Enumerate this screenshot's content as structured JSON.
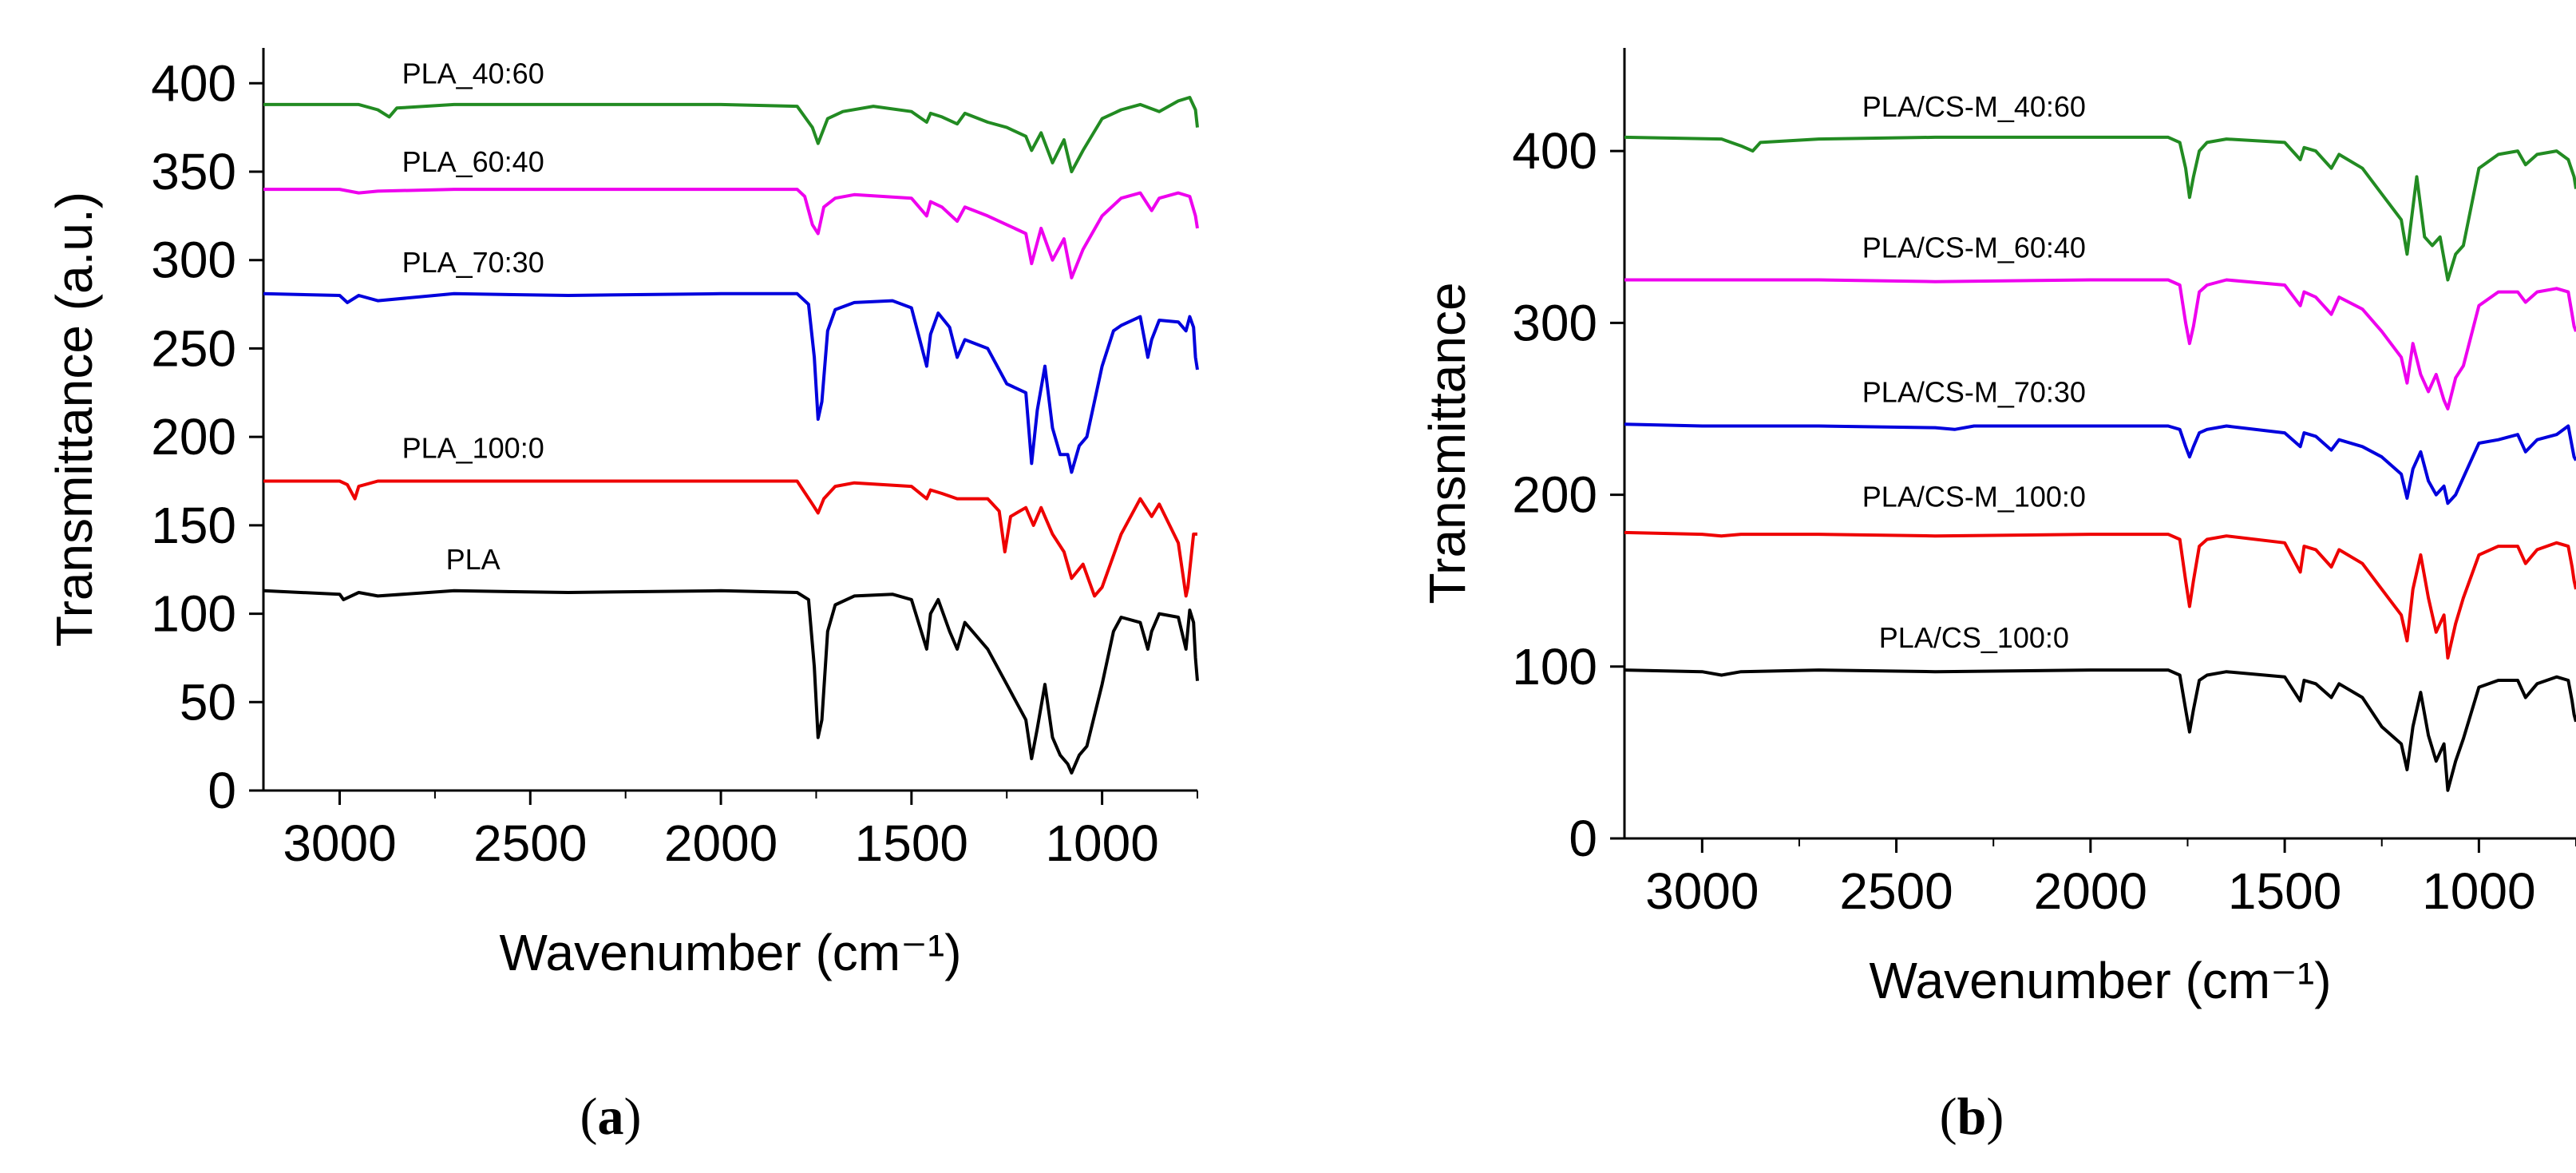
{
  "chart_data": [
    {
      "type": "line",
      "panel_label": "a",
      "xlabel": "Wavenumber (cm⁻¹)",
      "ylabel": "Transmittance (a.u.)",
      "xlim": [
        3200,
        750
      ],
      "ylim": [
        0,
        420
      ],
      "xticks": [
        3000,
        2500,
        2000,
        1500,
        1000
      ],
      "yticks": [
        0,
        50,
        100,
        150,
        200,
        250,
        300,
        350,
        400
      ],
      "grid": false,
      "series": [
        {
          "name": "PLA_40:60",
          "color": "#228b22",
          "baseline": 388,
          "label_x": 2650,
          "label_y": 400,
          "x": [
            3200,
            2950,
            2900,
            2870,
            2850,
            2700,
            2400,
            2000,
            1800,
            1760,
            1745,
            1720,
            1680,
            1600,
            1500,
            1460,
            1450,
            1420,
            1380,
            1360,
            1300,
            1250,
            1200,
            1185,
            1160,
            1130,
            1100,
            1080,
            1050,
            1000,
            950,
            900,
            850,
            800,
            770,
            755,
            750
          ],
          "values": [
            388,
            388,
            385,
            381,
            386,
            388,
            388,
            388,
            387,
            375,
            366,
            380,
            384,
            387,
            384,
            378,
            383,
            381,
            377,
            383,
            378,
            375,
            370,
            362,
            372,
            355,
            368,
            350,
            362,
            380,
            385,
            388,
            384,
            390,
            392,
            385,
            375
          ]
        },
        {
          "name": "PLA_60:40",
          "color": "#ee00ee",
          "baseline": 340,
          "label_x": 2650,
          "label_y": 350,
          "x": [
            3200,
            3000,
            2950,
            2900,
            2700,
            2400,
            2000,
            1800,
            1780,
            1760,
            1745,
            1730,
            1700,
            1650,
            1500,
            1460,
            1450,
            1420,
            1380,
            1360,
            1300,
            1250,
            1200,
            1185,
            1160,
            1130,
            1100,
            1080,
            1050,
            1000,
            950,
            900,
            870,
            850,
            800,
            770,
            755,
            750
          ],
          "values": [
            340,
            340,
            338,
            339,
            340,
            340,
            340,
            340,
            336,
            320,
            315,
            330,
            335,
            337,
            335,
            325,
            333,
            330,
            322,
            330,
            325,
            320,
            315,
            298,
            318,
            300,
            312,
            290,
            306,
            325,
            335,
            338,
            328,
            335,
            338,
            336,
            325,
            318
          ]
        },
        {
          "name": "PLA_70:30",
          "color": "#0000dd",
          "baseline": 281,
          "label_x": 2650,
          "label_y": 293,
          "x": [
            3200,
            3000,
            2980,
            2950,
            2900,
            2700,
            2400,
            2000,
            1800,
            1770,
            1755,
            1745,
            1735,
            1720,
            1700,
            1650,
            1550,
            1500,
            1460,
            1450,
            1430,
            1400,
            1380,
            1360,
            1300,
            1250,
            1200,
            1185,
            1170,
            1150,
            1130,
            1110,
            1090,
            1080,
            1060,
            1040,
            1000,
            970,
            950,
            900,
            880,
            870,
            850,
            800,
            780,
            770,
            760,
            755,
            750
          ],
          "values": [
            281,
            280,
            276,
            280,
            277,
            281,
            280,
            281,
            281,
            275,
            245,
            210,
            220,
            260,
            272,
            276,
            277,
            273,
            240,
            258,
            270,
            262,
            245,
            255,
            250,
            230,
            225,
            185,
            215,
            240,
            205,
            190,
            190,
            180,
            195,
            200,
            240,
            260,
            263,
            268,
            245,
            255,
            266,
            265,
            260,
            268,
            262,
            245,
            238
          ]
        },
        {
          "name": "PLA_100:0",
          "color": "#ee0000",
          "baseline": 175,
          "label_x": 2650,
          "label_y": 188,
          "x": [
            3200,
            3000,
            2980,
            2960,
            2950,
            2900,
            2700,
            2400,
            2000,
            1800,
            1760,
            1745,
            1730,
            1700,
            1650,
            1500,
            1460,
            1450,
            1420,
            1380,
            1300,
            1270,
            1255,
            1240,
            1200,
            1180,
            1160,
            1130,
            1100,
            1080,
            1050,
            1020,
            1000,
            950,
            900,
            870,
            850,
            800,
            780,
            775,
            760,
            750
          ],
          "values": [
            175,
            175,
            173,
            165,
            172,
            175,
            175,
            175,
            175,
            175,
            162,
            157,
            165,
            172,
            174,
            172,
            165,
            170,
            168,
            165,
            165,
            158,
            135,
            155,
            160,
            150,
            160,
            145,
            135,
            120,
            128,
            110,
            115,
            145,
            165,
            155,
            162,
            140,
            110,
            115,
            145,
            145
          ]
        },
        {
          "name": "PLA",
          "color": "#000000",
          "baseline": 113,
          "label_x": 2650,
          "label_y": 125,
          "x": [
            3200,
            3000,
            2990,
            2950,
            2900,
            2700,
            2400,
            2000,
            1800,
            1770,
            1755,
            1745,
            1735,
            1720,
            1700,
            1650,
            1550,
            1500,
            1460,
            1450,
            1430,
            1400,
            1380,
            1360,
            1300,
            1250,
            1200,
            1185,
            1170,
            1150,
            1130,
            1110,
            1090,
            1080,
            1060,
            1040,
            1000,
            970,
            950,
            900,
            880,
            870,
            850,
            800,
            780,
            770,
            760,
            755,
            750
          ],
          "values": [
            113,
            111,
            108,
            112,
            110,
            113,
            112,
            113,
            112,
            108,
            70,
            30,
            40,
            90,
            105,
            110,
            111,
            108,
            80,
            100,
            108,
            90,
            80,
            95,
            80,
            60,
            40,
            18,
            35,
            60,
            30,
            20,
            15,
            10,
            20,
            25,
            60,
            90,
            98,
            95,
            80,
            90,
            100,
            98,
            80,
            102,
            95,
            75,
            62
          ]
        }
      ]
    },
    {
      "type": "line",
      "panel_label": "b",
      "xlabel": "Wavenumber (cm⁻¹)",
      "ylabel": "Transmittance",
      "xlim": [
        3200,
        750
      ],
      "ylim": [
        0,
        460
      ],
      "xticks": [
        3000,
        2500,
        2000,
        1500,
        1000
      ],
      "yticks": [
        0,
        100,
        200,
        300,
        400
      ],
      "grid": false,
      "series": [
        {
          "name": "PLA/CS-M_40:60",
          "color": "#228b22",
          "baseline": 408,
          "label_x": 2300,
          "label_y": 420,
          "x": [
            3200,
            2950,
            2900,
            2870,
            2850,
            2700,
            2400,
            2000,
            1800,
            1770,
            1755,
            1745,
            1735,
            1720,
            1700,
            1650,
            1500,
            1460,
            1450,
            1420,
            1380,
            1360,
            1300,
            1250,
            1200,
            1185,
            1160,
            1140,
            1120,
            1100,
            1080,
            1060,
            1040,
            1000,
            950,
            900,
            880,
            850,
            800,
            770,
            755,
            750
          ],
          "values": [
            408,
            407,
            403,
            400,
            405,
            407,
            408,
            408,
            408,
            405,
            390,
            373,
            385,
            400,
            405,
            407,
            405,
            395,
            402,
            400,
            390,
            398,
            390,
            375,
            360,
            340,
            385,
            350,
            345,
            350,
            325,
            340,
            345,
            390,
            398,
            400,
            392,
            398,
            400,
            395,
            385,
            378
          ]
        },
        {
          "name": "PLA/CS-M_60:40",
          "color": "#ee00ee",
          "baseline": 325,
          "label_x": 2300,
          "label_y": 338,
          "x": [
            3200,
            3000,
            2700,
            2400,
            2000,
            1800,
            1770,
            1755,
            1745,
            1735,
            1720,
            1700,
            1650,
            1500,
            1460,
            1450,
            1420,
            1380,
            1360,
            1300,
            1250,
            1200,
            1185,
            1170,
            1150,
            1130,
            1110,
            1090,
            1080,
            1060,
            1040,
            1000,
            950,
            900,
            880,
            850,
            800,
            770,
            760,
            755,
            750
          ],
          "values": [
            325,
            325,
            325,
            324,
            325,
            325,
            322,
            300,
            288,
            298,
            318,
            322,
            325,
            322,
            310,
            318,
            315,
            305,
            315,
            308,
            295,
            280,
            265,
            288,
            270,
            260,
            270,
            255,
            250,
            268,
            275,
            310,
            318,
            318,
            312,
            318,
            320,
            318,
            305,
            298,
            295
          ]
        },
        {
          "name": "PLA/CS-M_70:30",
          "color": "#0000dd",
          "baseline": 241,
          "label_x": 2300,
          "label_y": 254,
          "x": [
            3200,
            3000,
            2700,
            2400,
            2350,
            2300,
            2000,
            1800,
            1770,
            1755,
            1745,
            1735,
            1720,
            1700,
            1650,
            1500,
            1460,
            1450,
            1420,
            1380,
            1360,
            1300,
            1250,
            1200,
            1185,
            1170,
            1150,
            1130,
            1110,
            1090,
            1080,
            1060,
            1040,
            1000,
            950,
            900,
            880,
            850,
            800,
            770,
            760,
            755,
            750
          ],
          "values": [
            241,
            240,
            240,
            239,
            238,
            240,
            240,
            240,
            238,
            228,
            222,
            228,
            236,
            238,
            240,
            236,
            228,
            236,
            234,
            226,
            232,
            228,
            222,
            212,
            198,
            215,
            225,
            208,
            200,
            205,
            195,
            200,
            210,
            230,
            232,
            235,
            225,
            232,
            235,
            240,
            228,
            222,
            220
          ]
        },
        {
          "name": "PLA/CS-M_100:0",
          "color": "#ee0000",
          "baseline": 178,
          "label_x": 2300,
          "label_y": 193,
          "x": [
            3200,
            3000,
            2950,
            2900,
            2700,
            2400,
            2000,
            1800,
            1770,
            1755,
            1745,
            1735,
            1720,
            1700,
            1650,
            1500,
            1460,
            1450,
            1420,
            1380,
            1360,
            1300,
            1250,
            1200,
            1185,
            1170,
            1150,
            1130,
            1110,
            1090,
            1080,
            1060,
            1040,
            1000,
            950,
            900,
            880,
            850,
            800,
            770,
            760,
            755,
            750
          ],
          "values": [
            178,
            177,
            176,
            177,
            177,
            176,
            177,
            177,
            174,
            150,
            135,
            150,
            170,
            174,
            176,
            172,
            155,
            170,
            168,
            158,
            168,
            160,
            145,
            130,
            115,
            145,
            165,
            140,
            120,
            130,
            105,
            125,
            140,
            165,
            170,
            170,
            160,
            168,
            172,
            170,
            158,
            150,
            145
          ]
        },
        {
          "name": "PLA/CS_100:0",
          "color": "#000000",
          "baseline": 98,
          "label_x": 2300,
          "label_y": 111,
          "x": [
            3200,
            3000,
            2950,
            2900,
            2700,
            2400,
            2000,
            1800,
            1770,
            1755,
            1745,
            1735,
            1720,
            1700,
            1650,
            1500,
            1460,
            1450,
            1420,
            1380,
            1360,
            1300,
            1250,
            1200,
            1185,
            1170,
            1150,
            1130,
            1110,
            1090,
            1080,
            1060,
            1040,
            1000,
            950,
            900,
            880,
            850,
            800,
            770,
            760,
            755,
            750
          ],
          "values": [
            98,
            97,
            95,
            97,
            98,
            97,
            98,
            98,
            95,
            75,
            62,
            75,
            92,
            95,
            97,
            94,
            80,
            92,
            90,
            82,
            90,
            82,
            65,
            55,
            40,
            65,
            85,
            60,
            45,
            55,
            28,
            45,
            58,
            88,
            92,
            92,
            82,
            90,
            94,
            92,
            80,
            72,
            68
          ]
        }
      ]
    }
  ]
}
